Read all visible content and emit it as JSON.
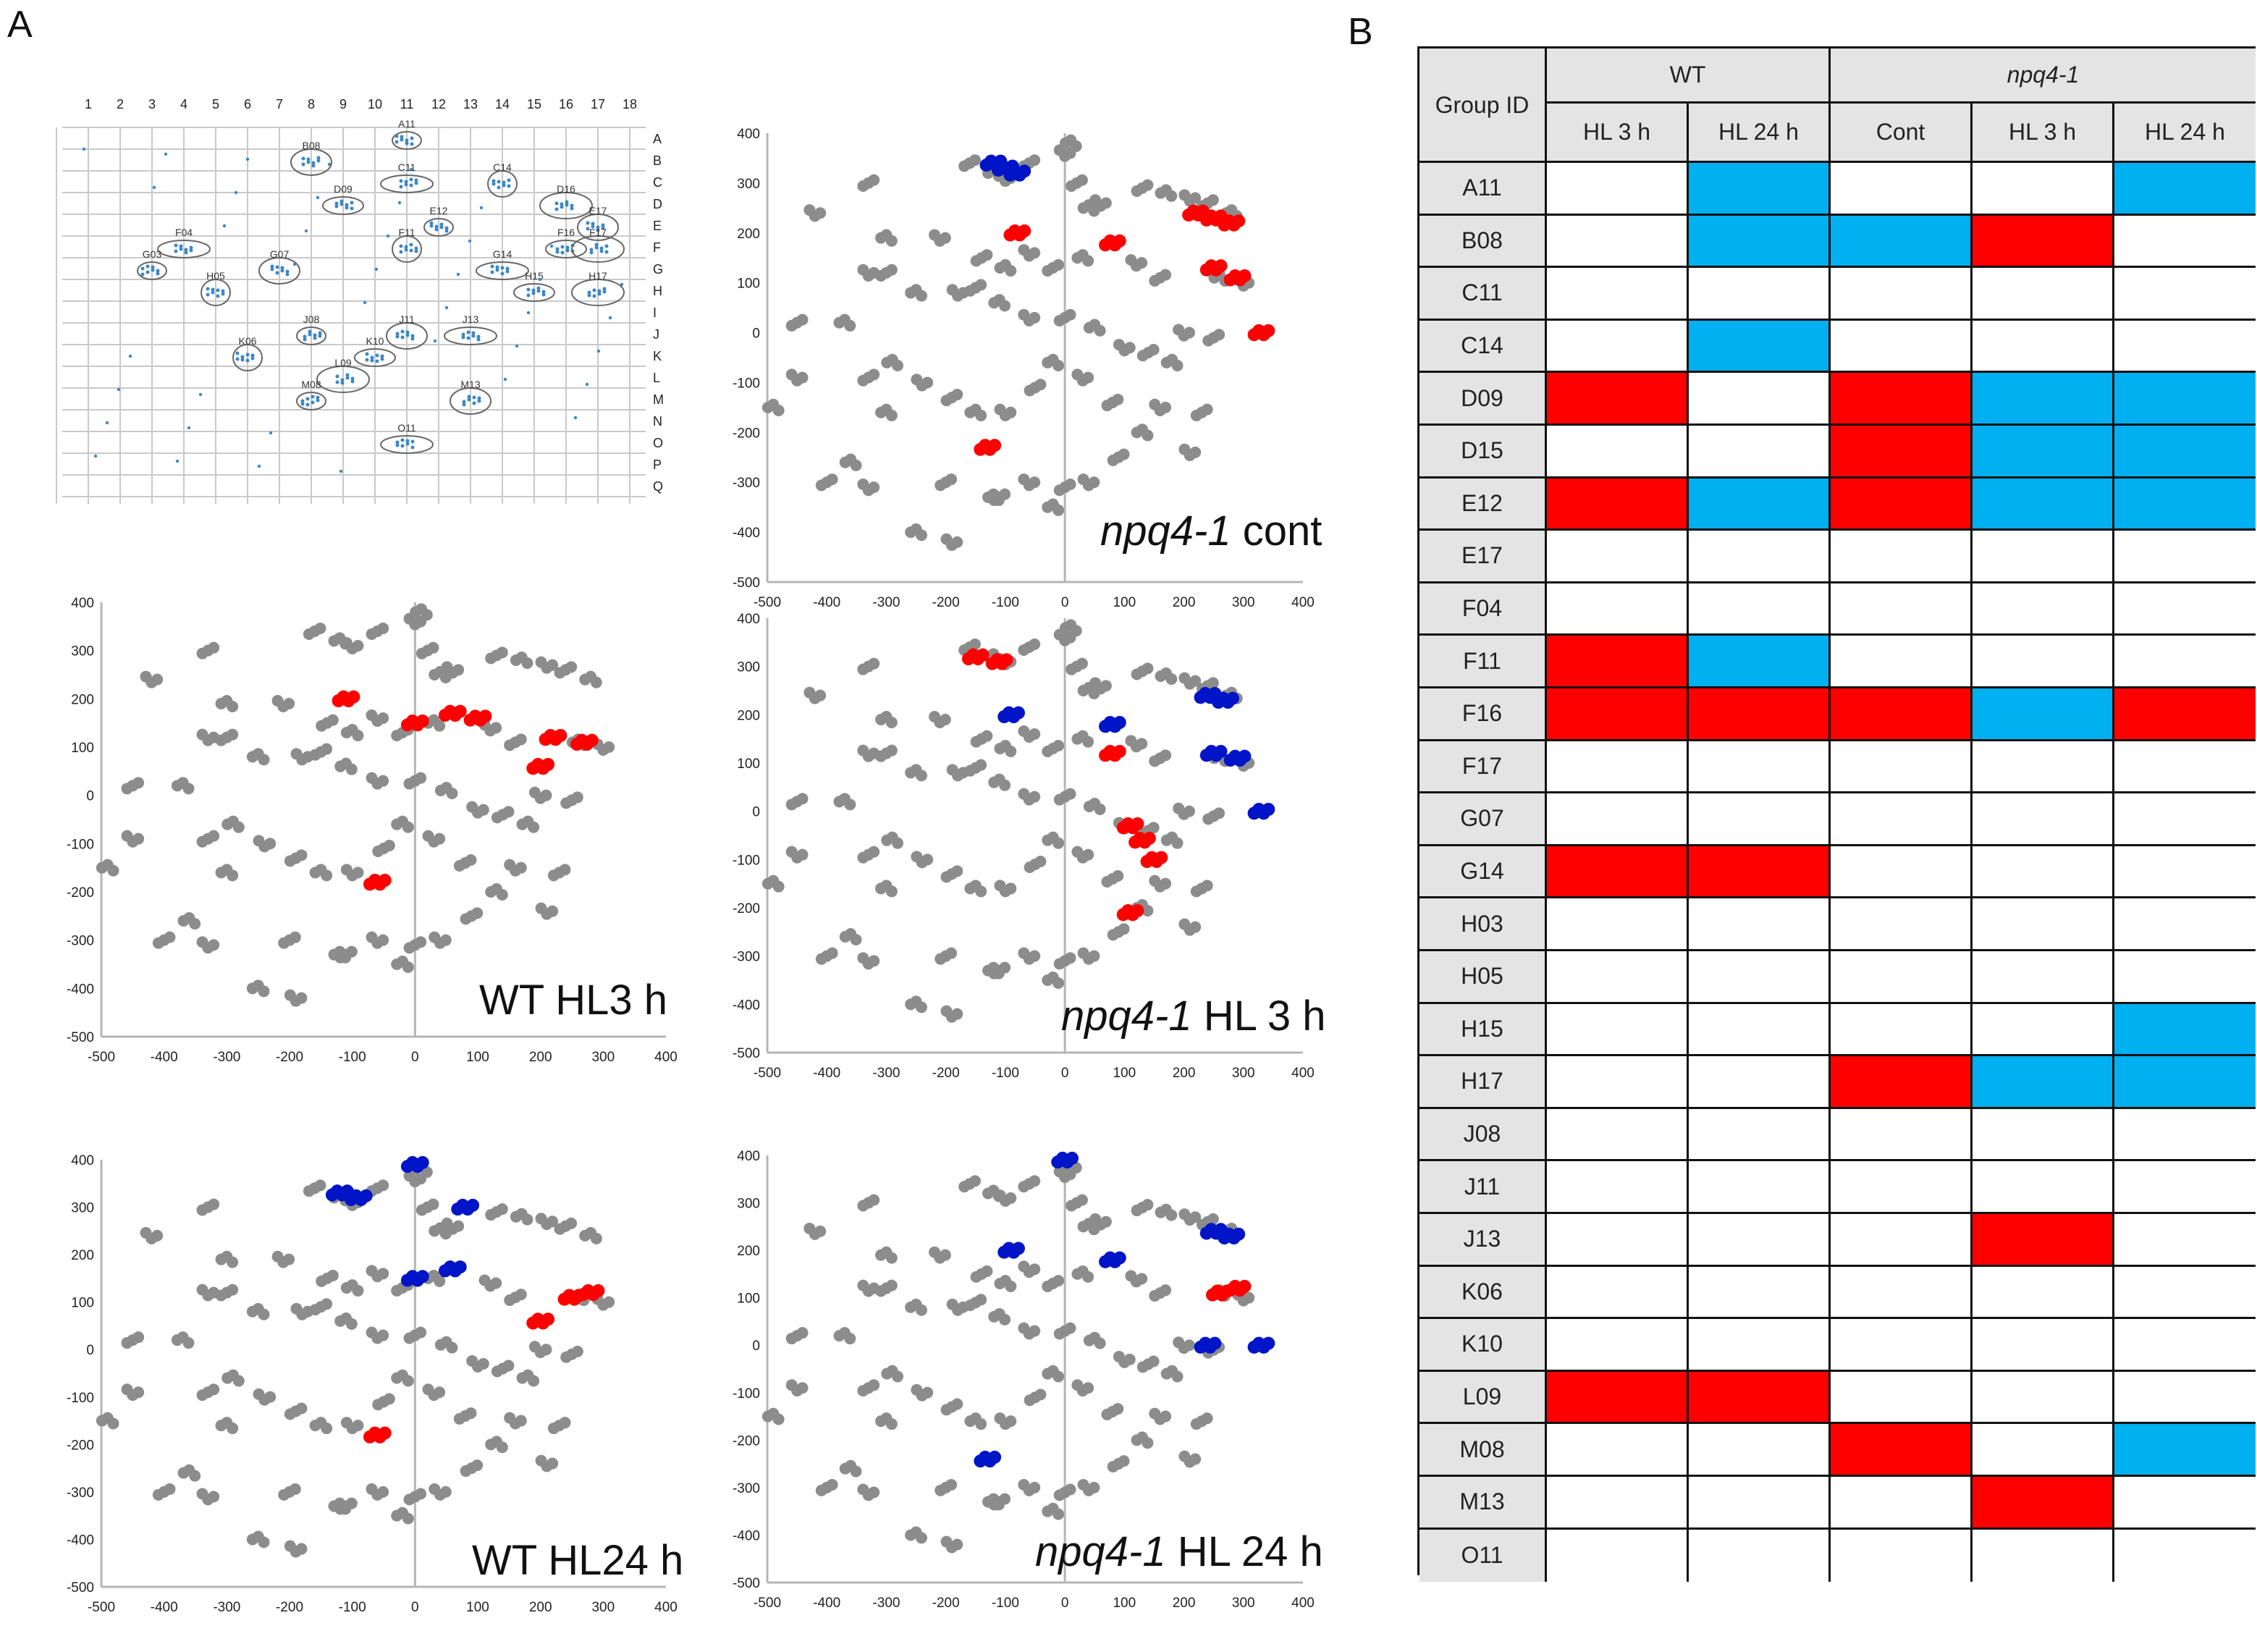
{
  "figure": {
    "panel_a_label": "A",
    "panel_b_label": "B",
    "colors": {
      "gray": "#8c8c8c",
      "red": "#ff0000",
      "blue": "#0014c8",
      "cell_red": "#ff0000",
      "cell_blue": "#00b0f0",
      "grid_dot": "#3a87c8"
    }
  },
  "gel_map": {
    "columns": [
      "1",
      "2",
      "3",
      "4",
      "5",
      "6",
      "7",
      "8",
      "9",
      "10",
      "11",
      "12",
      "13",
      "14",
      "15",
      "16",
      "17",
      "18"
    ],
    "rows": [
      "A",
      "B",
      "C",
      "D",
      "E",
      "F",
      "G",
      "H",
      "I",
      "J",
      "K",
      "L",
      "M",
      "N",
      "O",
      "P",
      "Q"
    ],
    "spots": [
      "A11",
      "B08",
      "C11",
      "C14",
      "D09",
      "D16",
      "E12",
      "E17",
      "F04",
      "F11",
      "F16",
      "F17",
      "G03",
      "G07",
      "G14",
      "H05",
      "H15",
      "H17",
      "J08",
      "J11",
      "J13",
      "K06",
      "K10",
      "L09",
      "M08",
      "M13",
      "O11"
    ]
  },
  "plots": [
    {
      "id": "npq4-cont",
      "title_italic": "npq4-1",
      "title_rest": " cont"
    },
    {
      "id": "wt-hl3",
      "title_italic": "",
      "title_rest": "WT HL3 h"
    },
    {
      "id": "npq4-hl3",
      "title_italic": "npq4-1",
      "title_rest": " HL 3 h"
    },
    {
      "id": "wt-hl24",
      "title_italic": "",
      "title_rest": "WT HL24 h"
    },
    {
      "id": "npq4-hl24",
      "title_italic": "npq4-1",
      "title_rest": " HL 24 h"
    }
  ],
  "chart_data": [
    {
      "type": "scatter",
      "title": "npq4-1 cont",
      "xlim": [
        -500,
        400
      ],
      "ylim": [
        -500,
        400
      ],
      "x_ticks": [
        -500,
        -400,
        -300,
        -200,
        -100,
        0,
        100,
        200,
        300,
        400
      ],
      "y_ticks": [
        400,
        300,
        200,
        100,
        0,
        -100,
        -200,
        -300,
        -400,
        -500
      ],
      "highlighted_red": [
        "D09",
        "E12",
        "F16",
        "H17",
        "M08",
        "D15"
      ],
      "highlighted_blue": [
        "B08"
      ]
    },
    {
      "type": "scatter",
      "title": "WT HL3 h",
      "xlim": [
        -500,
        400
      ],
      "ylim": [
        -500,
        400
      ],
      "x_ticks": [
        -500,
        -400,
        -300,
        -200,
        -100,
        0,
        100,
        200,
        300,
        400
      ],
      "y_ticks": [
        400,
        300,
        200,
        100,
        0,
        -100,
        -200,
        -300,
        -400,
        -500
      ],
      "highlighted_red": [
        "D09",
        "E12",
        "F11",
        "F16",
        "G14",
        "L09"
      ],
      "highlighted_blue": []
    },
    {
      "type": "scatter",
      "title": "npq4-1 HL 3 h",
      "xlim": [
        -500,
        400
      ],
      "ylim": [
        -500,
        400
      ],
      "x_ticks": [
        -500,
        -400,
        -300,
        -200,
        -100,
        0,
        100,
        200,
        300,
        400
      ],
      "y_ticks": [
        400,
        300,
        200,
        100,
        0,
        -100,
        -200,
        -300,
        -400,
        -500
      ],
      "highlighted_red": [
        "B08",
        "J13",
        "M13"
      ],
      "highlighted_blue": [
        "D09",
        "E12",
        "D15",
        "F16",
        "H17"
      ]
    },
    {
      "type": "scatter",
      "title": "WT HL24 h",
      "xlim": [
        -500,
        400
      ],
      "ylim": [
        -500,
        400
      ],
      "x_ticks": [
        -500,
        -400,
        -300,
        -200,
        -100,
        0,
        100,
        200,
        300,
        400
      ],
      "y_ticks": [
        400,
        300,
        200,
        100,
        0,
        -100,
        -200,
        -300,
        -400,
        -500
      ],
      "highlighted_red": [
        "F16",
        "G14",
        "L09"
      ],
      "highlighted_blue": [
        "A11",
        "B08",
        "C14",
        "E12",
        "F11"
      ]
    },
    {
      "type": "scatter",
      "title": "npq4-1 HL 24 h",
      "xlim": [
        -500,
        400
      ],
      "ylim": [
        -500,
        400
      ],
      "x_ticks": [
        -500,
        -400,
        -300,
        -200,
        -100,
        0,
        100,
        200,
        300,
        400
      ],
      "y_ticks": [
        400,
        300,
        200,
        100,
        0,
        -100,
        -200,
        -300,
        -400,
        -500
      ],
      "highlighted_red": [
        "F16"
      ],
      "highlighted_blue": [
        "A11",
        "D09",
        "D15",
        "E12",
        "H15",
        "H17",
        "M08"
      ]
    }
  ],
  "table": {
    "group_header": "Group ID",
    "wt_header": "WT",
    "npq_header": "npq4-1",
    "subheaders": [
      "HL 3 h",
      "HL 24 h",
      "Cont",
      "HL 3 h",
      "HL 24 h"
    ],
    "rows": [
      {
        "id": "A11",
        "cells": [
          "",
          "B",
          "",
          "",
          "B"
        ]
      },
      {
        "id": "B08",
        "cells": [
          "",
          "B",
          "B",
          "R",
          ""
        ]
      },
      {
        "id": "C11",
        "cells": [
          "",
          "",
          "",
          "",
          ""
        ]
      },
      {
        "id": "C14",
        "cells": [
          "",
          "B",
          "",
          "",
          ""
        ]
      },
      {
        "id": "D09",
        "cells": [
          "R",
          "",
          "R",
          "B",
          "B"
        ]
      },
      {
        "id": "D15",
        "cells": [
          "",
          "",
          "R",
          "B",
          "B"
        ]
      },
      {
        "id": "E12",
        "cells": [
          "R",
          "B",
          "R",
          "B",
          "B"
        ]
      },
      {
        "id": "E17",
        "cells": [
          "",
          "",
          "",
          "",
          ""
        ]
      },
      {
        "id": "F04",
        "cells": [
          "",
          "",
          "",
          "",
          ""
        ]
      },
      {
        "id": "F11",
        "cells": [
          "R",
          "B",
          "",
          "",
          ""
        ]
      },
      {
        "id": "F16",
        "cells": [
          "R",
          "R",
          "R",
          "B",
          "R"
        ]
      },
      {
        "id": "F17",
        "cells": [
          "",
          "",
          "",
          "",
          ""
        ]
      },
      {
        "id": "G07",
        "cells": [
          "",
          "",
          "",
          "",
          ""
        ]
      },
      {
        "id": "G14",
        "cells": [
          "R",
          "R",
          "",
          "",
          ""
        ]
      },
      {
        "id": "H03",
        "cells": [
          "",
          "",
          "",
          "",
          ""
        ]
      },
      {
        "id": "H05",
        "cells": [
          "",
          "",
          "",
          "",
          ""
        ]
      },
      {
        "id": "H15",
        "cells": [
          "",
          "",
          "",
          "",
          "B"
        ]
      },
      {
        "id": "H17",
        "cells": [
          "",
          "",
          "R",
          "B",
          "B"
        ]
      },
      {
        "id": "J08",
        "cells": [
          "",
          "",
          "",
          "",
          ""
        ]
      },
      {
        "id": "J11",
        "cells": [
          "",
          "",
          "",
          "",
          ""
        ]
      },
      {
        "id": "J13",
        "cells": [
          "",
          "",
          "",
          "R",
          ""
        ]
      },
      {
        "id": "K06",
        "cells": [
          "",
          "",
          "",
          "",
          ""
        ]
      },
      {
        "id": "K10",
        "cells": [
          "",
          "",
          "",
          "",
          ""
        ]
      },
      {
        "id": "L09",
        "cells": [
          "R",
          "R",
          "",
          "",
          ""
        ]
      },
      {
        "id": "M08",
        "cells": [
          "",
          "",
          "R",
          "",
          "B"
        ]
      },
      {
        "id": "M13",
        "cells": [
          "",
          "",
          "",
          "R",
          ""
        ]
      },
      {
        "id": "O11",
        "cells": [
          "",
          "",
          "",
          "",
          ""
        ]
      }
    ]
  }
}
